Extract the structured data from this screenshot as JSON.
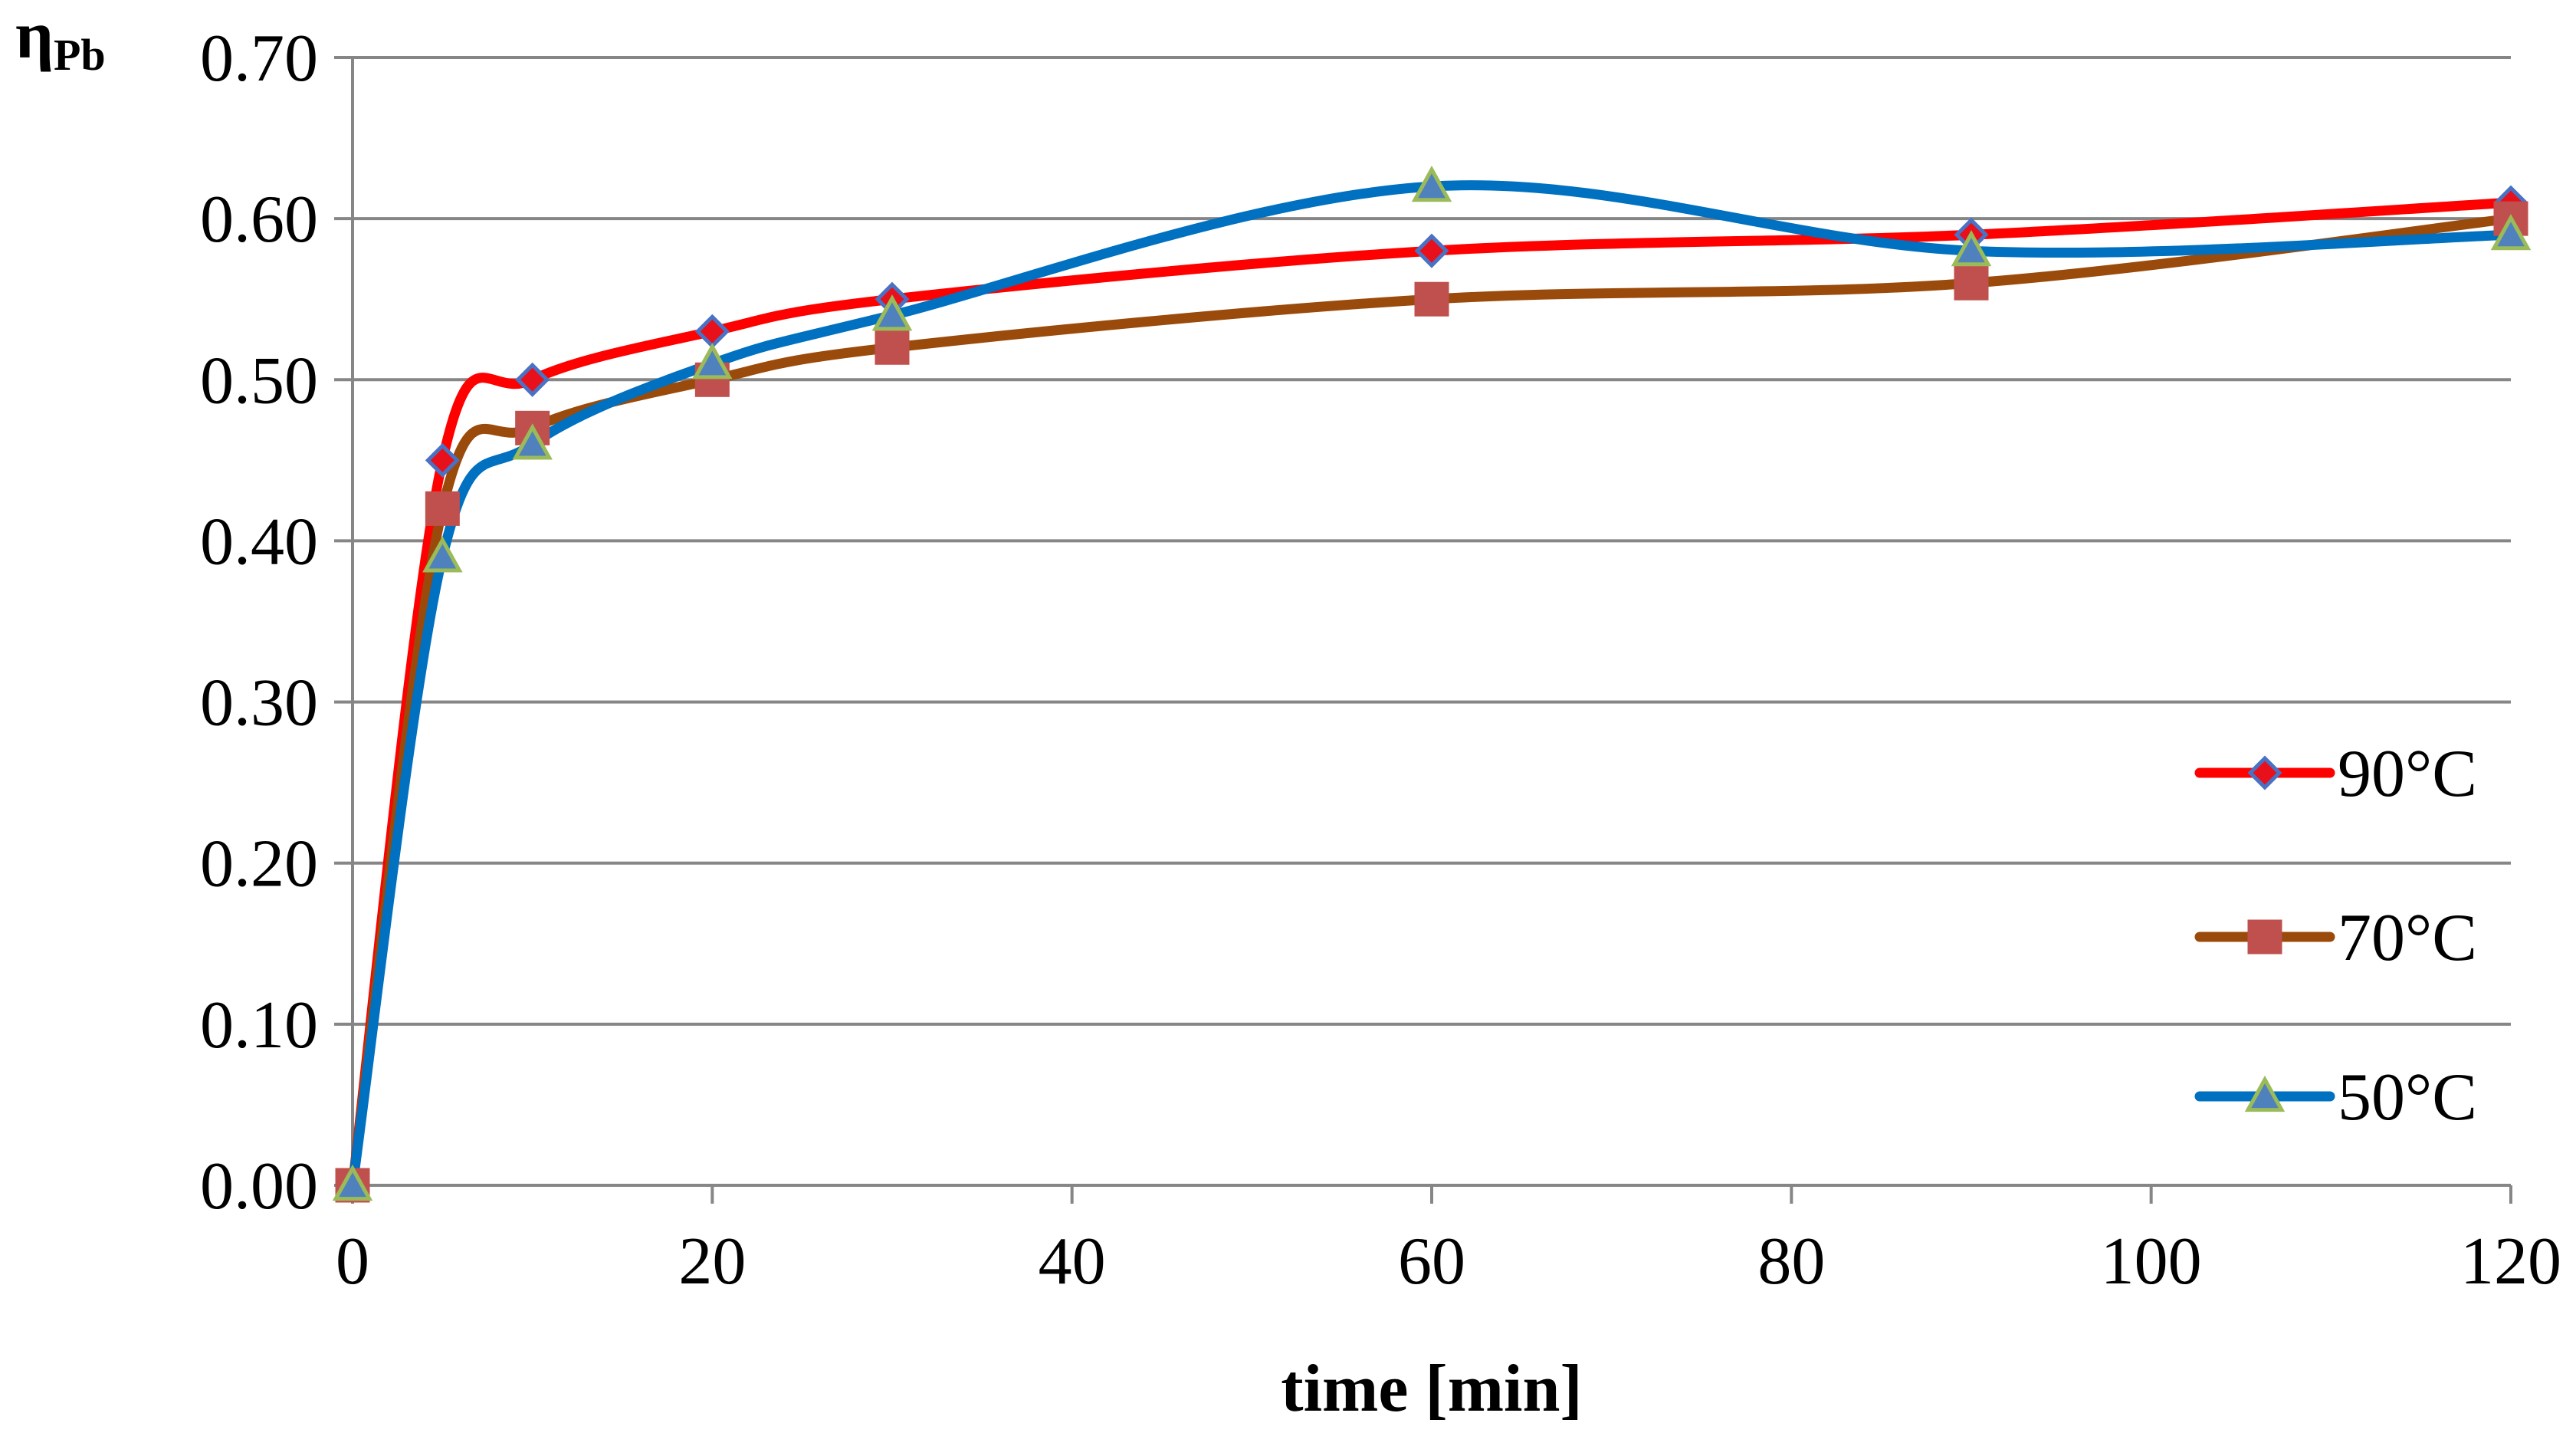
{
  "chart_data": {
    "type": "line",
    "title": "",
    "xlabel": "time [min]",
    "ylabel_main": "η",
    "ylabel_sub": "Pb",
    "xlim": [
      0,
      120
    ],
    "ylim": [
      0,
      0.7
    ],
    "xticks": [
      0,
      20,
      40,
      60,
      80,
      100,
      120
    ],
    "xtick_labels": [
      "0",
      "20",
      "40",
      "60",
      "80",
      "100",
      "120"
    ],
    "yticks": [
      0,
      0.1,
      0.2,
      0.3,
      0.4,
      0.5,
      0.6,
      0.7
    ],
    "ytick_labels": [
      "0.00",
      "0.10",
      "0.20",
      "0.30",
      "0.40",
      "0.50",
      "0.60",
      "0.70"
    ],
    "grid": true,
    "legend_position": "right",
    "x": [
      0,
      5,
      10,
      20,
      30,
      60,
      90,
      120
    ],
    "series": [
      {
        "name": "90°C",
        "values": [
          0,
          0.45,
          0.5,
          0.53,
          0.55,
          0.58,
          0.59,
          0.61
        ],
        "line_color": "#ff0000",
        "marker": "diamond",
        "marker_fill": "#e8101a",
        "marker_stroke": "#4a72c4"
      },
      {
        "name": "70°C",
        "values": [
          0,
          0.42,
          0.47,
          0.5,
          0.52,
          0.55,
          0.56,
          0.6
        ],
        "line_color": "#9a4a0a",
        "marker": "square",
        "marker_fill": "#c0504d",
        "marker_stroke": "#c0504d"
      },
      {
        "name": "50°C",
        "values": [
          0,
          0.39,
          0.46,
          0.51,
          0.54,
          0.62,
          0.58,
          0.59
        ],
        "line_color": "#0070c0",
        "marker": "triangle",
        "marker_fill": "#4f81bd",
        "marker_stroke": "#9bbb59"
      }
    ]
  }
}
